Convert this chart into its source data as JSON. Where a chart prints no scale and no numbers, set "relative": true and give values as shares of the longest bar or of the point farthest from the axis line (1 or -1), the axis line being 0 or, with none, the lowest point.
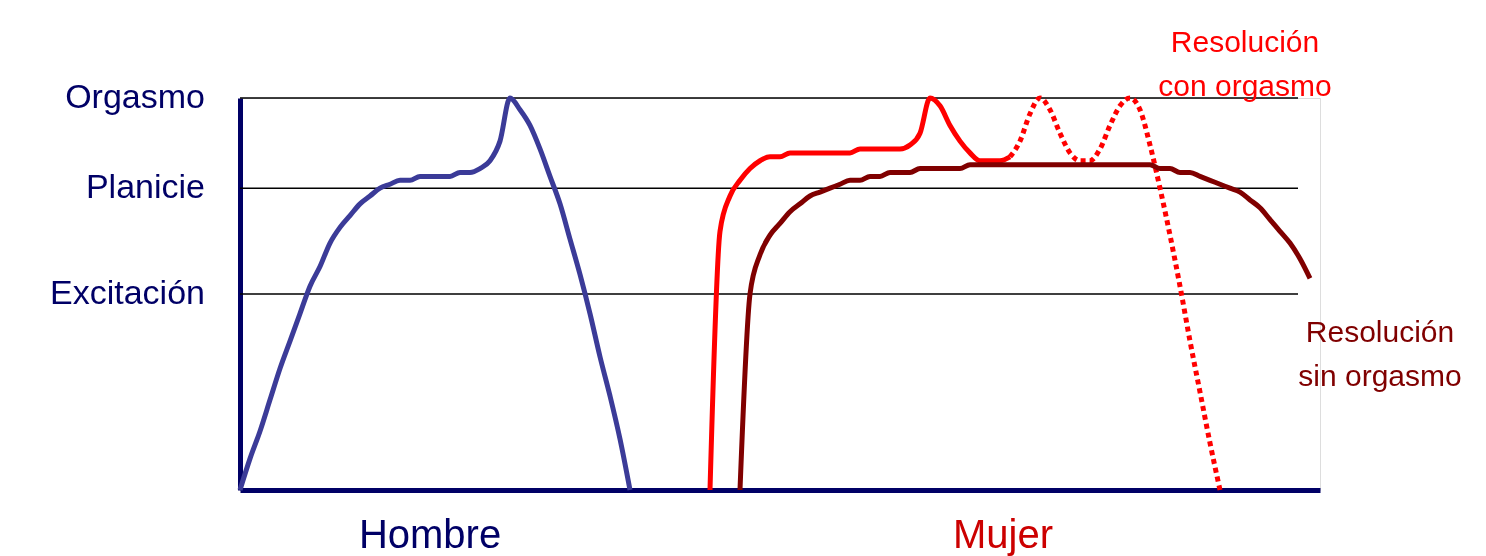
{
  "chart_data": {
    "type": "line",
    "relative": true,
    "categories": [
      null,
      null,
      null,
      null,
      null,
      null,
      null,
      null,
      null,
      null,
      null,
      null,
      null,
      null,
      null,
      null,
      null,
      null,
      null,
      null,
      null,
      null,
      null,
      null,
      null,
      null,
      null,
      null,
      null,
      null,
      null,
      null,
      null,
      null,
      null,
      null,
      null,
      null,
      null,
      null,
      null,
      null,
      null,
      null,
      null,
      null,
      null,
      null,
      null,
      null,
      null,
      null,
      null,
      null,
      null,
      null,
      null,
      null,
      null,
      null,
      null,
      null,
      null,
      null,
      null,
      null,
      null,
      null,
      null,
      null,
      null,
      null,
      null,
      null,
      null,
      null,
      null,
      null,
      null,
      null,
      null,
      null,
      null,
      null,
      null,
      null,
      null,
      null,
      null,
      null,
      null,
      null,
      null,
      null,
      null,
      null,
      null,
      null,
      null,
      null,
      null,
      null,
      null,
      null,
      null,
      null,
      null,
      null,
      null
    ],
    "series": [
      {
        "color": "#3b3b98",
        "line_style": "solid",
        "values": [
          0,
          0.08,
          0.15,
          0.23,
          0.31,
          0.38,
          0.45,
          0.52,
          0.57,
          0.63,
          0.67,
          0.7,
          0.73,
          0.75,
          0.77,
          0.78,
          0.79,
          0.79,
          0.8,
          0.8,
          0.8,
          0.8,
          0.81,
          0.81,
          0.82,
          0.84,
          0.89,
          1.0,
          0.97,
          0.93,
          0.87,
          0.8,
          0.73,
          0.64,
          0.55,
          0.45,
          0.34,
          0.24,
          0.13,
          0,
          null,
          null,
          null,
          null,
          null,
          null,
          null,
          null,
          null,
          null,
          null,
          null,
          null,
          null,
          null,
          null,
          null,
          null,
          null,
          null,
          null,
          null,
          null,
          null,
          null,
          null,
          null,
          null,
          null,
          null,
          null,
          null,
          null,
          null,
          null,
          null,
          null,
          null,
          null,
          null,
          null,
          null,
          null,
          null,
          null,
          null,
          null,
          null,
          null,
          null,
          null,
          null,
          null,
          null,
          null,
          null,
          null,
          null,
          null,
          null,
          null,
          null,
          null,
          null,
          null,
          null,
          null,
          null,
          null
        ]
      },
      {
        "color": "#ff0000",
        "line_style": "solid",
        "values": [
          null,
          null,
          null,
          null,
          null,
          null,
          null,
          null,
          null,
          null,
          null,
          null,
          null,
          null,
          null,
          null,
          null,
          null,
          null,
          null,
          null,
          null,
          null,
          null,
          null,
          null,
          null,
          null,
          null,
          null,
          null,
          null,
          null,
          null,
          null,
          null,
          null,
          null,
          null,
          null,
          null,
          null,
          null,
          null,
          null,
          null,
          null,
          0,
          0.66,
          0.75,
          0.79,
          0.82,
          0.84,
          0.85,
          0.85,
          0.86,
          0.86,
          0.86,
          0.86,
          0.86,
          0.86,
          0.86,
          0.87,
          0.87,
          0.87,
          0.87,
          0.87,
          0.88,
          0.91,
          1.0,
          0.98,
          0.93,
          0.89,
          0.86,
          0.84,
          0.84,
          0.84,
          0.85,
          null,
          null,
          null,
          null,
          null,
          null,
          null,
          null,
          null,
          null,
          null,
          null,
          null,
          null,
          null,
          null,
          null,
          null,
          null,
          null,
          null,
          null,
          null,
          null,
          null,
          null,
          null,
          null,
          null,
          null,
          null
        ]
      },
      {
        "name": "Resolución con orgasmo",
        "color": "#ff0000",
        "line_style": "dotted",
        "values": [
          null,
          null,
          null,
          null,
          null,
          null,
          null,
          null,
          null,
          null,
          null,
          null,
          null,
          null,
          null,
          null,
          null,
          null,
          null,
          null,
          null,
          null,
          null,
          null,
          null,
          null,
          null,
          null,
          null,
          null,
          null,
          null,
          null,
          null,
          null,
          null,
          null,
          null,
          null,
          null,
          null,
          null,
          null,
          null,
          null,
          null,
          null,
          null,
          null,
          null,
          null,
          null,
          null,
          null,
          null,
          null,
          null,
          null,
          null,
          null,
          null,
          null,
          null,
          null,
          null,
          null,
          null,
          null,
          null,
          null,
          null,
          null,
          null,
          null,
          null,
          null,
          null,
          0.85,
          0.89,
          0.96,
          1.0,
          0.97,
          0.91,
          0.86,
          0.84,
          0.84,
          0.87,
          0.93,
          0.98,
          1.0,
          0.97,
          0.88,
          0.77,
          0.65,
          0.52,
          0.38,
          0.25,
          0.12,
          0,
          null,
          null,
          null,
          null,
          null,
          null,
          null,
          null,
          null,
          null
        ]
      },
      {
        "name": "Resolución sin orgasmo",
        "color": "#800000",
        "line_style": "solid",
        "values": [
          null,
          null,
          null,
          null,
          null,
          null,
          null,
          null,
          null,
          null,
          null,
          null,
          null,
          null,
          null,
          null,
          null,
          null,
          null,
          null,
          null,
          null,
          null,
          null,
          null,
          null,
          null,
          null,
          null,
          null,
          null,
          null,
          null,
          null,
          null,
          null,
          null,
          null,
          null,
          null,
          null,
          null,
          null,
          null,
          null,
          null,
          null,
          null,
          null,
          null,
          0,
          0.5,
          0.6,
          0.65,
          0.68,
          0.71,
          0.73,
          0.75,
          0.76,
          0.77,
          0.78,
          0.79,
          0.79,
          0.8,
          0.8,
          0.81,
          0.81,
          0.81,
          0.82,
          0.82,
          0.82,
          0.82,
          0.82,
          0.83,
          0.83,
          0.83,
          0.83,
          0.83,
          0.83,
          0.83,
          0.83,
          0.83,
          0.83,
          0.83,
          0.83,
          0.83,
          0.83,
          0.83,
          0.83,
          0.83,
          0.83,
          0.83,
          0.82,
          0.82,
          0.81,
          0.81,
          0.8,
          0.79,
          0.78,
          0.77,
          0.76,
          0.74,
          0.72,
          0.69,
          0.66,
          0.63,
          0.59,
          0.54,
          null
        ]
      }
    ],
    "ref_lines": [
      {
        "axis": "y",
        "value": 1.0,
        "label": "Orgasmo"
      },
      {
        "axis": "y",
        "value": 0.77,
        "label": "Planicie"
      },
      {
        "axis": "y",
        "value": 0.5,
        "label": "Excitación"
      }
    ],
    "annotations": [
      "Hombre",
      "Mujer"
    ]
  }
}
